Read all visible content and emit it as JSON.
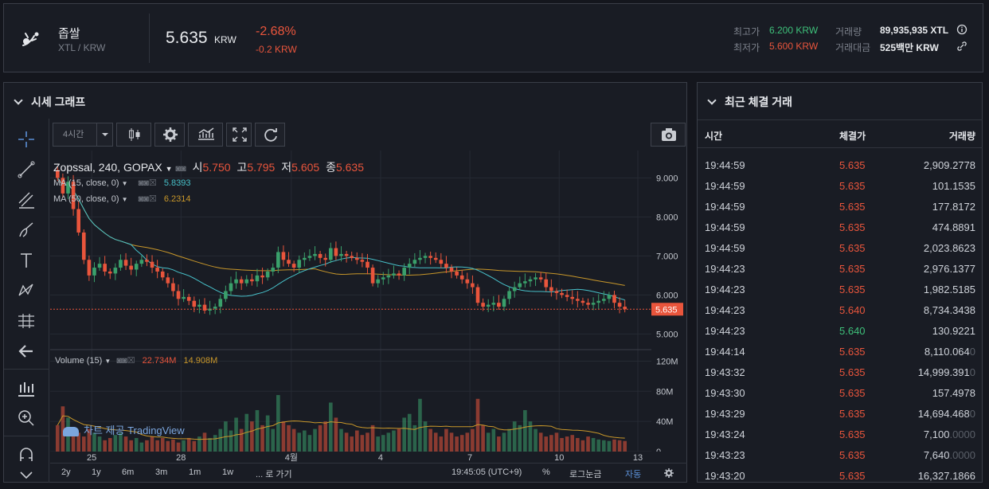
{
  "header": {
    "coin_name": "좁쌀",
    "pair": "XTL / KRW",
    "price": "5.635",
    "price_unit": "KRW",
    "change_pct": "-2.68%",
    "change_abs": "-0.2 KRW",
    "high_label": "최고가",
    "high_value": "6.200 KRW",
    "low_label": "최저가",
    "low_value": "5.600 KRW",
    "volume_label": "거래량",
    "volume_value": "89,935,935 XTL",
    "amount_label": "거래대금",
    "amount_value": "525백만 KRW"
  },
  "chart_panel": {
    "title": "시세 그래프",
    "interval": "4시간",
    "symbol_line": "Zopssal, 240, GOPAX",
    "ohlc": {
      "o_label": "시",
      "o": "5.750",
      "h_label": "고",
      "h": "5.795",
      "l_label": "저",
      "l": "5.605",
      "c_label": "종",
      "c": "5.635"
    },
    "ma15_label": "MA (15, close, 0)",
    "ma15_value": "5.8393",
    "ma50_label": "MA (50, close, 0)",
    "ma50_value": "6.2314",
    "volume_label": "Volume (15)",
    "volume_value": "22.734M",
    "volume_ma_value": "14.908M",
    "watermark": "차트 제공 TradingView",
    "last_price_tag": "5.635",
    "price_ticks": [
      "9.000",
      "8.000",
      "7.000",
      "6.000",
      "5.000"
    ],
    "volume_ticks": [
      "120M",
      "80M",
      "40M",
      "0"
    ],
    "date_ticks": [
      "25",
      "28",
      "4월",
      "4",
      "7",
      "10",
      "13"
    ],
    "ranges": [
      "2y",
      "1y",
      "6m",
      "3m",
      "1m",
      "1w",
      "... 로 가기"
    ],
    "time_display": "19:45:05 (UTC+9)",
    "pct_label": "%",
    "log_label": "로그눈금",
    "auto_label": "자동",
    "colors": {
      "up": "#3aa06b",
      "down": "#e9553c",
      "ma15": "#47c0c9",
      "ma50": "#c8972a"
    }
  },
  "chart_data": {
    "type": "candlestick",
    "x_ticks": [
      "25",
      "28",
      "4월",
      "4",
      "7",
      "10",
      "13"
    ],
    "ylim": [
      4.6,
      9.7
    ],
    "volume_ylim": [
      0,
      130
    ],
    "close": [
      9.0,
      8.6,
      8.9,
      8.2,
      7.6,
      6.9,
      6.5,
      6.7,
      6.8,
      6.6,
      6.55,
      6.7,
      6.9,
      6.75,
      6.65,
      6.8,
      6.9,
      6.85,
      6.7,
      6.6,
      6.45,
      6.3,
      6.1,
      5.9,
      5.95,
      5.85,
      5.7,
      5.75,
      5.6,
      5.65,
      5.7,
      5.9,
      6.1,
      6.3,
      6.4,
      6.3,
      6.4,
      6.35,
      6.5,
      6.45,
      6.6,
      6.7,
      7.1,
      6.9,
      6.8,
      6.7,
      6.9,
      6.95,
      7.0,
      7.05,
      6.95,
      6.9,
      7.2,
      7.0,
      7.05,
      7.0,
      6.95,
      6.9,
      6.85,
      6.7,
      6.3,
      6.4,
      6.45,
      6.5,
      6.55,
      6.5,
      6.7,
      6.8,
      6.9,
      6.95,
      7.0,
      6.95,
      6.9,
      6.8,
      6.7,
      6.6,
      6.5,
      6.4,
      6.3,
      6.2,
      5.8,
      5.7,
      5.75,
      5.8,
      5.7,
      5.9,
      6.1,
      6.2,
      6.3,
      6.35,
      6.4,
      6.45,
      6.4,
      6.2,
      6.1,
      6.05,
      6.0,
      5.95,
      5.9,
      5.85,
      5.8,
      5.75,
      5.8,
      5.85,
      5.9,
      6.0,
      5.8,
      5.7,
      5.635
    ],
    "volume": [
      35,
      60,
      45,
      30,
      25,
      20,
      30,
      25,
      20,
      15,
      18,
      22,
      25,
      20,
      15,
      18,
      12,
      15,
      20,
      15,
      18,
      14,
      16,
      12,
      15,
      18,
      14,
      20,
      25,
      18,
      22,
      30,
      40,
      28,
      45,
      30,
      50,
      40,
      55,
      35,
      48,
      30,
      75,
      40,
      35,
      30,
      25,
      28,
      22,
      30,
      35,
      40,
      65,
      45,
      30,
      25,
      20,
      28,
      22,
      25,
      35,
      20,
      22,
      25,
      28,
      30,
      45,
      50,
      35,
      70,
      40,
      30,
      25,
      20,
      30,
      25,
      20,
      22,
      25,
      30,
      70,
      35,
      25,
      30,
      20,
      25,
      30,
      40,
      35,
      55,
      40,
      30,
      25,
      20,
      22,
      25,
      18,
      20,
      22,
      18,
      15,
      20,
      18,
      16,
      15,
      14,
      16,
      15,
      14
    ]
  },
  "trades_panel": {
    "title": "최근 체결 거래",
    "col_time": "시간",
    "col_price": "체결가",
    "col_volume": "거래량",
    "rows": [
      {
        "time": "19:44:59",
        "price": "5.635",
        "side": "down",
        "volume": "2,909.2778",
        "dim": ""
      },
      {
        "time": "19:44:59",
        "price": "5.635",
        "side": "down",
        "volume": "101.1535",
        "dim": ""
      },
      {
        "time": "19:44:59",
        "price": "5.635",
        "side": "down",
        "volume": "177.8172",
        "dim": ""
      },
      {
        "time": "19:44:59",
        "price": "5.635",
        "side": "down",
        "volume": "474.8891",
        "dim": ""
      },
      {
        "time": "19:44:59",
        "price": "5.635",
        "side": "down",
        "volume": "2,023.8623",
        "dim": ""
      },
      {
        "time": "19:44:23",
        "price": "5.635",
        "side": "down",
        "volume": "2,976.1377",
        "dim": ""
      },
      {
        "time": "19:44:23",
        "price": "5.635",
        "side": "down",
        "volume": "1,982.5185",
        "dim": ""
      },
      {
        "time": "19:44:23",
        "price": "5.640",
        "side": "down",
        "volume": "8,734.3438",
        "dim": ""
      },
      {
        "time": "19:44:23",
        "price": "5.640",
        "side": "up",
        "volume": "130.9221",
        "dim": ""
      },
      {
        "time": "19:44:14",
        "price": "5.635",
        "side": "down",
        "volume": "8,110.064",
        "dim": "0"
      },
      {
        "time": "19:43:32",
        "price": "5.635",
        "side": "down",
        "volume": "14,999.391",
        "dim": "0"
      },
      {
        "time": "19:43:30",
        "price": "5.635",
        "side": "down",
        "volume": "157.4978",
        "dim": ""
      },
      {
        "time": "19:43:29",
        "price": "5.635",
        "side": "down",
        "volume": "14,694.468",
        "dim": "0"
      },
      {
        "time": "19:43:24",
        "price": "5.635",
        "side": "down",
        "volume": "7,100",
        "dim": ".0000"
      },
      {
        "time": "19:43:23",
        "price": "5.635",
        "side": "down",
        "volume": "7,640",
        "dim": ".0000"
      },
      {
        "time": "19:43:20",
        "price": "5.635",
        "side": "down",
        "volume": "16,327.1866",
        "dim": ""
      }
    ]
  }
}
